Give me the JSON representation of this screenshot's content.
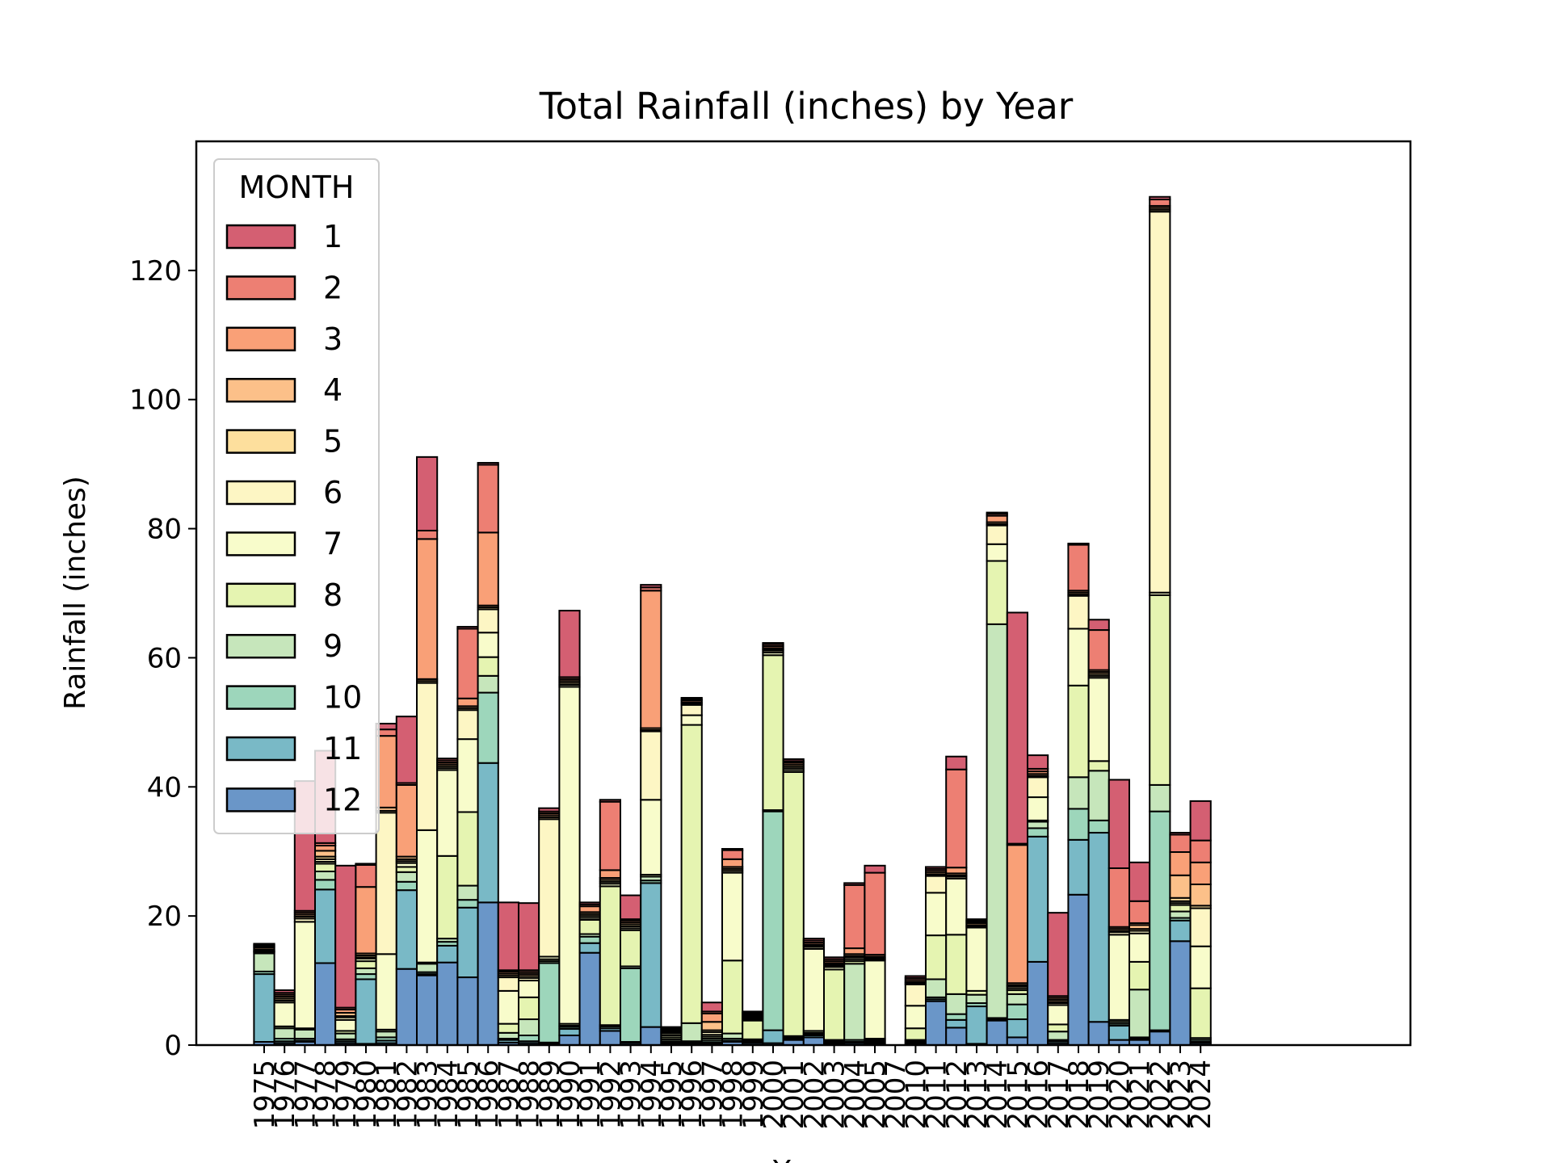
{
  "chart_data": {
    "type": "bar",
    "stacked": true,
    "title": "Total Rainfall (inches) by Year",
    "ylabel": "Rainfall (inches)",
    "xlabel": "Year",
    "ylim": [
      0,
      140
    ],
    "yticks": [
      0,
      20,
      40,
      60,
      80,
      100,
      120
    ],
    "grid": false,
    "legend": {
      "title": "MONTH",
      "placement": "top-left"
    },
    "categories": [
      "1975",
      "1976",
      "1977",
      "1978",
      "1979",
      "1980",
      "1981",
      "1982",
      "1983",
      "1984",
      "1985",
      "1986",
      "1987",
      "1988",
      "1989",
      "1990",
      "1991",
      "1992",
      "1993",
      "1994",
      "1995",
      "1996",
      "1997",
      "1998",
      "1999",
      "2000",
      "2001",
      "2002",
      "2003",
      "2004",
      "2005",
      "2007",
      "2010",
      "2011",
      "2012",
      "2013",
      "2014",
      "2015",
      "2016",
      "2017",
      "2018",
      "2019",
      "2020",
      "2021",
      "2022",
      "2023",
      "2024"
    ],
    "series": [
      {
        "name": "12",
        "color": "#6a96c8",
        "values": [
          0.5,
          0.3,
          0.5,
          12.7,
          0.3,
          0.2,
          0.3,
          11.8,
          10.8,
          12.8,
          10.5,
          22.1,
          0.4,
          0.3,
          0.2,
          1.5,
          14.3,
          2.2,
          0.3,
          2.8,
          0.2,
          0.2,
          0.2,
          0.5,
          0.3,
          0.3,
          0.8,
          1.2,
          0.2,
          0.3,
          0.2,
          0,
          0.2,
          6.8,
          2.7,
          0.2,
          3.8,
          1.2,
          12.9,
          0.3,
          23.3,
          3.6,
          0.8,
          0.8,
          2.1,
          16.1,
          0.3
        ]
      },
      {
        "name": "11",
        "color": "#79b9c6",
        "values": [
          10.5,
          0.3,
          0.2,
          11.4,
          0.3,
          10.0,
          0.4,
          12.2,
          0.2,
          2.6,
          10.8,
          21.6,
          0.4,
          0.3,
          0.2,
          1.0,
          1.5,
          0.4,
          0.2,
          22.3,
          0.2,
          0.2,
          0.2,
          0.2,
          0.2,
          2.0,
          0.2,
          0.3,
          0.2,
          0.2,
          0.2,
          0,
          0.2,
          0.3,
          1.2,
          5.8,
          0.2,
          2.8,
          19.4,
          0.3,
          8.5,
          29.3,
          2.2,
          0.2,
          0.2,
          3.2,
          0.2
        ]
      },
      {
        "name": "10",
        "color": "#9dd6bb",
        "values": [
          0.4,
          0.4,
          0.3,
          1.5,
          0.3,
          0.8,
          0.5,
          1.3,
          0.3,
          0.6,
          1.2,
          10.9,
          0.2,
          0.9,
          12.3,
          0.3,
          1.0,
          0.3,
          11.4,
          0.4,
          0.2,
          0.2,
          0.3,
          0.3,
          0.2,
          33.9,
          0.2,
          0.2,
          0.2,
          0.3,
          0.2,
          0,
          0.2,
          0.3,
          0.9,
          0.5,
          0.2,
          2.3,
          1.3,
          0.2,
          4.8,
          1.9,
          0.3,
          0.2,
          33.9,
          0.4,
          0.3
        ]
      },
      {
        "name": "9",
        "color": "#c6e6bb",
        "values": [
          2.8,
          1.6,
          1.4,
          1.3,
          0.9,
          0.9,
          0.9,
          1.5,
          1.3,
          0.5,
          2.2,
          2.6,
          0.9,
          2.5,
          0.3,
          0.2,
          0.4,
          0.2,
          0.3,
          0.6,
          0.3,
          2.8,
          0.3,
          0.8,
          0.2,
          0.2,
          0.2,
          0.2,
          0.2,
          11.8,
          0.2,
          0,
          0.2,
          2.8,
          3.1,
          1.3,
          61.0,
          1.6,
          1.0,
          1.3,
          4.9,
          7.7,
          0.3,
          7.4,
          4.1,
          1.0,
          0.3
        ]
      },
      {
        "name": "8",
        "color": "#e5f4b1",
        "values": [
          0.2,
          0.3,
          0.2,
          1.2,
          0.4,
          1.1,
          0.3,
          0.8,
          0.2,
          12.8,
          11.4,
          2.9,
          1.4,
          3.4,
          0.3,
          0.3,
          2.2,
          21.5,
          5.6,
          0.3,
          0.3,
          46.2,
          0.3,
          11.3,
          2.9,
          24.0,
          40.9,
          0.3,
          10.9,
          0.4,
          0.2,
          0,
          1.8,
          6.8,
          9.2,
          0.6,
          9.8,
          0.6,
          0.2,
          1.1,
          14.2,
          1.5,
          0.3,
          4.3,
          29.4,
          1.0,
          7.7
        ]
      },
      {
        "name": "7",
        "color": "#f8fccb",
        "values": [
          0.1,
          3.7,
          16.5,
          0.3,
          1.7,
          0.4,
          11.7,
          0.6,
          20.5,
          13.3,
          11.3,
          3.8,
          5.1,
          2.6,
          0.4,
          52.2,
          0.3,
          0.4,
          0.3,
          11.6,
          0.3,
          1.5,
          0.3,
          13.6,
          0.2,
          0.4,
          0.3,
          12.7,
          0.4,
          0.3,
          12.1,
          0,
          3.5,
          6.6,
          8.7,
          9.8,
          2.6,
          0.3,
          3.6,
          3.0,
          8.8,
          12.9,
          13.2,
          4.4,
          0.4,
          0.3,
          6.5
        ]
      },
      {
        "name": "6",
        "color": "#fdf6c4",
        "values": [
          0.1,
          0.3,
          0.5,
          0.4,
          0.4,
          0.2,
          21.9,
          0.3,
          22.8,
          0.3,
          4.5,
          3.6,
          2.1,
          0.4,
          21.3,
          0.3,
          0.3,
          0.3,
          0.3,
          10.6,
          0.3,
          1.6,
          0.4,
          0.3,
          0.2,
          0.3,
          0.3,
          0.3,
          0.2,
          0.3,
          0.2,
          0,
          3.3,
          2.6,
          0.3,
          0.2,
          2.9,
          0.3,
          3.1,
          0.3,
          5.1,
          0.3,
          0.4,
          0.4,
          59.0,
          0.3,
          5.9
        ]
      },
      {
        "name": "5",
        "color": "#fddf9d",
        "values": [
          0.2,
          0.3,
          0.3,
          0.4,
          0.2,
          0.3,
          0.3,
          0.3,
          0.3,
          0.3,
          0.3,
          0.3,
          0.3,
          0.3,
          0.3,
          0.3,
          0.3,
          0.3,
          0.3,
          0.2,
          0.2,
          0.2,
          0.3,
          0.3,
          0.2,
          0.2,
          0.3,
          0.2,
          0.2,
          0.2,
          0.2,
          0,
          0.2,
          0.2,
          0.2,
          0.2,
          0.2,
          0.2,
          0.2,
          0.2,
          0.2,
          0.3,
          0.2,
          0.3,
          0.3,
          0.5,
          0.4
        ]
      },
      {
        "name": "4",
        "color": "#fcc089",
        "values": [
          0.3,
          0.3,
          0.3,
          0.9,
          0.5,
          0.3,
          0.5,
          0.4,
          0.3,
          0.3,
          0.3,
          0.3,
          0.3,
          0.3,
          0.3,
          0.3,
          0.3,
          0.3,
          0.3,
          0.3,
          0.2,
          0.2,
          1.3,
          0.3,
          0.2,
          0.2,
          0.3,
          0.2,
          0.2,
          0.3,
          0.2,
          0,
          0.2,
          0.3,
          0.3,
          0.3,
          0.3,
          0.3,
          0.3,
          0.3,
          0.3,
          0.3,
          0.3,
          0.6,
          0.3,
          3.5,
          3.3
        ]
      },
      {
        "name": "3",
        "color": "#f9a077",
        "values": [
          0.2,
          0.3,
          0.3,
          0.8,
          0.5,
          10.3,
          11.1,
          11.1,
          21.7,
          0.3,
          1.2,
          11.3,
          0.3,
          0.3,
          0.3,
          0.3,
          0.9,
          1.2,
          0.3,
          21.3,
          0.2,
          0.3,
          1.3,
          1.2,
          0.2,
          0.3,
          0.3,
          0.3,
          0.3,
          0.9,
          0.3,
          0,
          0.3,
          0.3,
          0.9,
          0.2,
          1.0,
          21.4,
          0.4,
          0.3,
          0.3,
          0.3,
          0.3,
          0.3,
          0.3,
          3.6,
          3.4
        ]
      },
      {
        "name": "2",
        "color": "#ed7f73",
        "values": [
          0.2,
          0.3,
          0.3,
          0.4,
          0.3,
          3.4,
          1.0,
          0.3,
          1.3,
          0.3,
          10.8,
          10.5,
          0.2,
          0.3,
          0.3,
          0.3,
          0.3,
          10.6,
          0.2,
          0.5,
          0.2,
          0.2,
          0.3,
          1.4,
          0.2,
          0.3,
          0.2,
          0.3,
          0.3,
          9.8,
          12.7,
          0,
          0.3,
          0.3,
          15.2,
          0.2,
          0.3,
          0.2,
          0.4,
          0.3,
          7.1,
          6.2,
          9.1,
          3.4,
          1.0,
          2.7,
          3.4
        ]
      },
      {
        "name": "1",
        "color": "#d45f72",
        "values": [
          0.2,
          0.4,
          20.1,
          14.3,
          22.0,
          0.2,
          0.9,
          10.3,
          11.4,
          0.3,
          0.3,
          0.3,
          10.5,
          10.4,
          0.5,
          10.3,
          0.3,
          0.3,
          3.7,
          0.4,
          0.2,
          0.2,
          1.4,
          0.2,
          0.2,
          0.2,
          0.3,
          0.3,
          0.3,
          0.3,
          1.1,
          0,
          0.3,
          0.3,
          2.0,
          0.2,
          0.2,
          35.8,
          2.1,
          12.9,
          0.2,
          1.6,
          13.7,
          6.0,
          0.4,
          0.3,
          6.1
        ]
      }
    ]
  }
}
